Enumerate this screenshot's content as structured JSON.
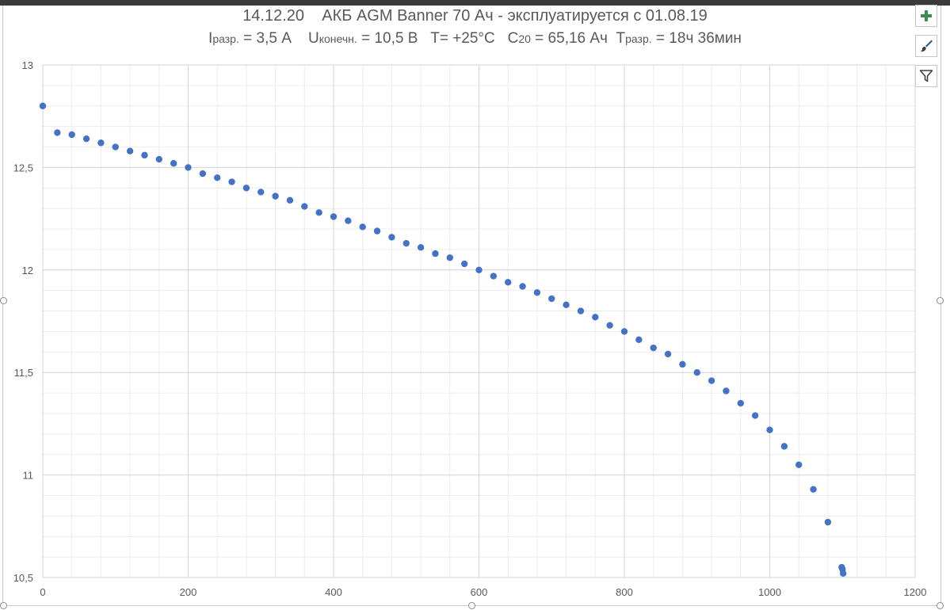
{
  "window": {
    "accent": "#4472C4"
  },
  "chart_data": {
    "type": "scatter",
    "title_parts": {
      "date": "14.12.20",
      "battery": "АКБ AGM Banner 70 Ач - эксплуатируется с 01.08.19"
    },
    "subtitle_parts": {
      "i_sym": "I",
      "i_sub": "разр.",
      "i_val": " = 3,5 А",
      "u_sym": "U",
      "u_sub": "конечн.",
      "u_val": " = 10,5 В",
      "t_val": "T= +25°C",
      "c_sym": "C",
      "c_sub": "20",
      "c_val": " = 65,16 Ач",
      "tr_sym": "T",
      "tr_sub": "разр.",
      "tr_val": " = 18ч 36мин"
    },
    "xlim": [
      0,
      1200
    ],
    "ylim": [
      10.5,
      13
    ],
    "x_ticks": [
      "0",
      "200",
      "400",
      "600",
      "800",
      "1000",
      "1200"
    ],
    "y_ticks": [
      "10,5",
      "11",
      "11,5",
      "12",
      "12,5",
      "13"
    ],
    "grid": true,
    "minor_grid": true,
    "marker_color": "#4472C4",
    "series": [
      {
        "x": [
          0,
          20,
          40,
          60,
          80,
          100,
          120,
          140,
          160,
          180,
          200,
          220,
          240,
          260,
          280,
          300,
          320,
          340,
          360,
          380,
          400,
          420,
          440,
          460,
          480,
          500,
          520,
          540,
          560,
          580,
          600,
          620,
          640,
          660,
          680,
          700,
          720,
          740,
          760,
          780,
          800,
          820,
          840,
          860,
          880,
          900,
          920,
          940,
          960,
          980,
          1000,
          1020,
          1040,
          1060,
          1080,
          1099,
          1100,
          1101
        ],
        "y": [
          12.8,
          12.67,
          12.66,
          12.64,
          12.62,
          12.6,
          12.58,
          12.56,
          12.54,
          12.52,
          12.5,
          12.47,
          12.45,
          12.43,
          12.4,
          12.38,
          12.36,
          12.34,
          12.31,
          12.28,
          12.26,
          12.24,
          12.21,
          12.19,
          12.16,
          12.13,
          12.11,
          12.08,
          12.06,
          12.03,
          12.0,
          11.97,
          11.94,
          11.92,
          11.89,
          11.86,
          11.83,
          11.8,
          11.77,
          11.73,
          11.7,
          11.66,
          11.62,
          11.59,
          11.54,
          11.5,
          11.46,
          11.41,
          11.35,
          11.29,
          11.22,
          11.14,
          11.05,
          10.93,
          10.77,
          10.55,
          10.54,
          10.52
        ]
      }
    ]
  }
}
